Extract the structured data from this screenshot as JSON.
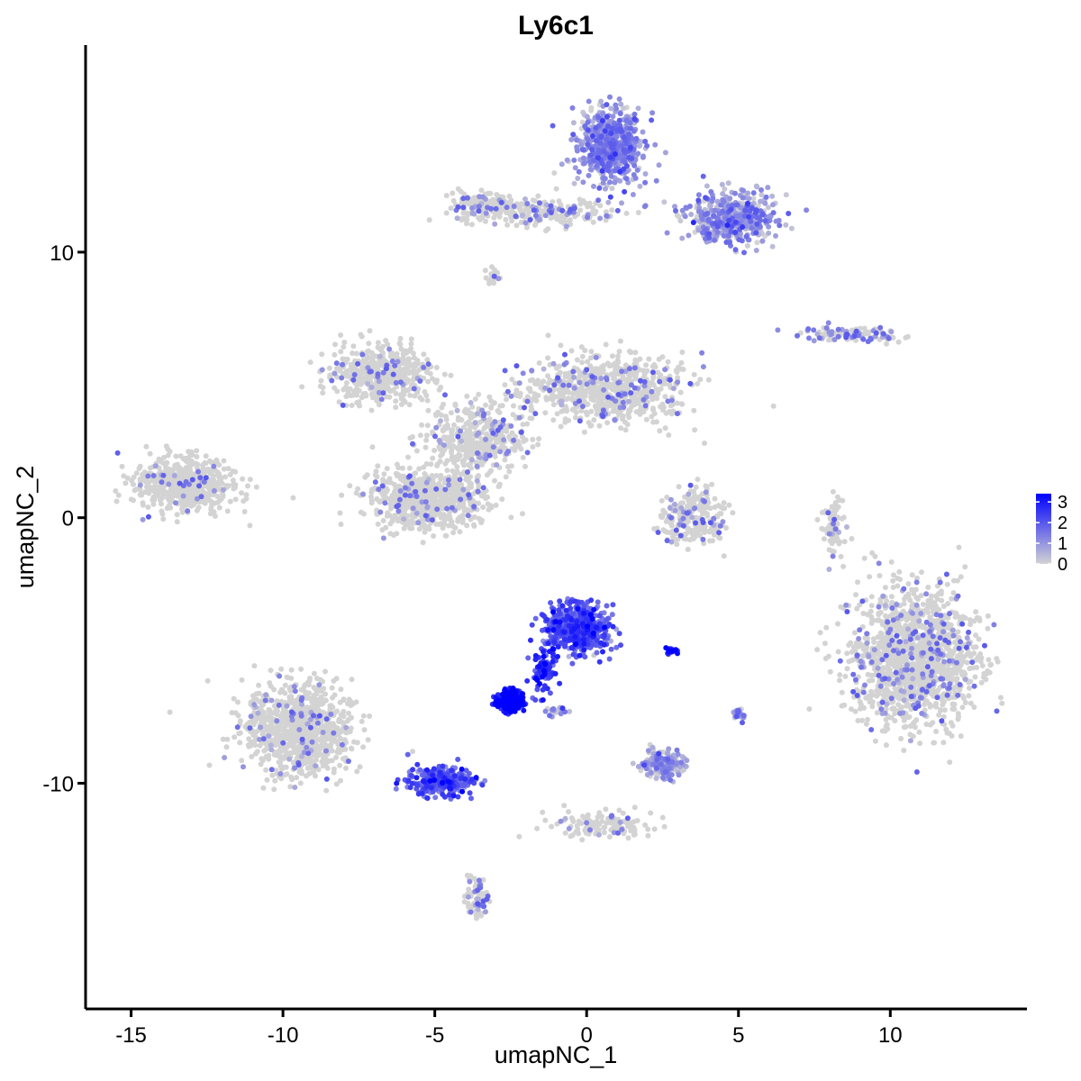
{
  "chart_data": {
    "type": "scatter",
    "title": "Ly6c1",
    "xlabel": "umapNC_1",
    "ylabel": "umapNC_2",
    "xlim": [
      -16.5,
      14.5
    ],
    "ylim": [
      -18.5,
      17.8
    ],
    "x_ticks": [
      -15,
      -10,
      -5,
      0,
      5,
      10
    ],
    "x_tick_labels": [
      "-15",
      "-10",
      "-5",
      "0",
      "5",
      "10"
    ],
    "y_ticks": [
      -10,
      0,
      10
    ],
    "y_tick_labels": [
      "-10",
      "0",
      "10"
    ],
    "grid": false,
    "color_scale": {
      "low": "#d3d3d3",
      "high": "#0000ff",
      "min": 0,
      "max": 3.4,
      "ticks": [
        0,
        1,
        2,
        3
      ],
      "tick_labels": [
        "0",
        "1",
        "2",
        "3"
      ],
      "legend_position": "right"
    },
    "clusters": [
      {
        "center": [
          0.8,
          14.0
        ],
        "spread": [
          1.0,
          1.2
        ],
        "n": 650,
        "expr": 1.0
      },
      {
        "center": [
          4.8,
          11.3
        ],
        "spread": [
          1.3,
          0.9
        ],
        "n": 500,
        "expr": 0.8
      },
      {
        "center": [
          -1.5,
          11.5
        ],
        "spread": [
          2.5,
          0.45
        ],
        "n": 220,
        "expr": 0.15
      },
      {
        "center": [
          -3.5,
          11.8
        ],
        "spread": [
          0.9,
          0.4
        ],
        "n": 120,
        "expr": 0.1
      },
      {
        "center": [
          8.8,
          6.9
        ],
        "spread": [
          1.5,
          0.25
        ],
        "n": 110,
        "expr": 0.3
      },
      {
        "center": [
          -6.8,
          5.4
        ],
        "spread": [
          1.5,
          0.9
        ],
        "n": 500,
        "expr": 0.05
      },
      {
        "center": [
          0.5,
          4.8
        ],
        "spread": [
          2.4,
          1.2
        ],
        "n": 750,
        "expr": 0.08
      },
      {
        "center": [
          -3.5,
          3.0
        ],
        "spread": [
          1.5,
          1.2
        ],
        "n": 400,
        "expr": 0.05
      },
      {
        "center": [
          -5.2,
          0.7
        ],
        "spread": [
          1.7,
          1.0
        ],
        "n": 700,
        "expr": 0.05
      },
      {
        "center": [
          -13.2,
          1.2
        ],
        "spread": [
          1.5,
          0.9
        ],
        "n": 550,
        "expr": 0.03
      },
      {
        "center": [
          3.5,
          0.0
        ],
        "spread": [
          1.0,
          0.9
        ],
        "n": 250,
        "expr": 0.1
      },
      {
        "center": [
          10.8,
          -5.3
        ],
        "spread": [
          1.9,
          2.3
        ],
        "n": 1400,
        "expr": 0.08
      },
      {
        "center": [
          8.1,
          -0.3
        ],
        "spread": [
          0.3,
          1.1
        ],
        "n": 80,
        "expr": 0.1
      },
      {
        "center": [
          -9.5,
          -8.0
        ],
        "spread": [
          1.6,
          1.6
        ],
        "n": 900,
        "expr": 0.05
      },
      {
        "center": [
          -4.8,
          -9.9
        ],
        "spread": [
          1.0,
          0.5
        ],
        "n": 320,
        "expr": 1.8
      },
      {
        "center": [
          -0.3,
          -4.2
        ],
        "spread": [
          0.9,
          0.8
        ],
        "n": 550,
        "expr": 2.0
      },
      {
        "center": [
          -1.4,
          -5.8
        ],
        "spread": [
          0.4,
          0.7
        ],
        "n": 90,
        "expr": 2.3
      },
      {
        "center": [
          -2.5,
          -6.9
        ],
        "spread": [
          0.4,
          0.35
        ],
        "n": 220,
        "expr": 3.2
      },
      {
        "center": [
          2.5,
          -9.3
        ],
        "spread": [
          0.6,
          0.45
        ],
        "n": 180,
        "expr": 0.6
      },
      {
        "center": [
          0.7,
          -11.6
        ],
        "spread": [
          1.6,
          0.5
        ],
        "n": 130,
        "expr": 0.05
      },
      {
        "center": [
          -3.6,
          -14.2
        ],
        "spread": [
          0.35,
          0.9
        ],
        "n": 70,
        "expr": 0.2
      },
      {
        "center": [
          2.8,
          -5.0
        ],
        "spread": [
          0.2,
          0.12
        ],
        "n": 25,
        "expr": 2.8
      },
      {
        "center": [
          5.0,
          -7.4
        ],
        "spread": [
          0.2,
          0.3
        ],
        "n": 30,
        "expr": 0.4
      },
      {
        "center": [
          -3.1,
          9.1
        ],
        "spread": [
          0.25,
          0.3
        ],
        "n": 20,
        "expr": 0.05
      },
      {
        "center": [
          -1.0,
          -7.3
        ],
        "spread": [
          0.3,
          0.15
        ],
        "n": 20,
        "expr": 1.0
      }
    ]
  }
}
